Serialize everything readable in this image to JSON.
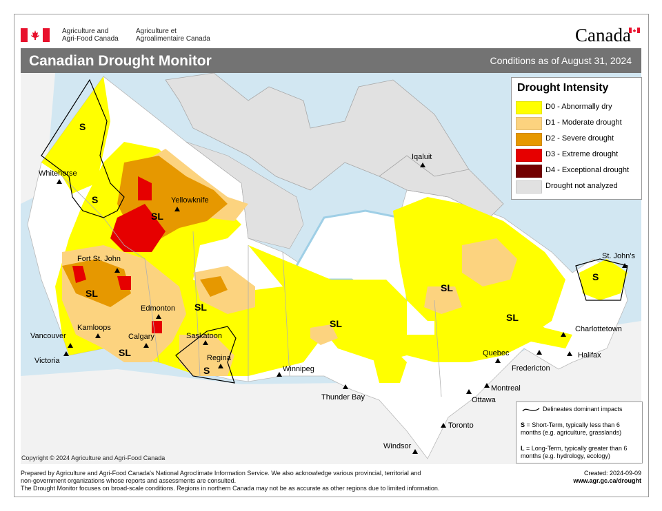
{
  "header": {
    "dept_en": [
      "Agriculture and",
      "Agri-Food Canada"
    ],
    "dept_fr": [
      "Agriculture et",
      "Agroalimentaire Canada"
    ],
    "wordmark": "Canada",
    "title": "Canadian Drought Monitor",
    "conditions": "Conditions as of August 31, 2024"
  },
  "legend": {
    "title": "Drought Intensity",
    "items": [
      {
        "label": "D0 - Abnormally dry",
        "color": "#ffff00"
      },
      {
        "label": "D1 - Moderate drought",
        "color": "#fcd37f"
      },
      {
        "label": "D2 - Severe drought",
        "color": "#e69800"
      },
      {
        "label": "D3 - Extreme drought",
        "color": "#e60000"
      },
      {
        "label": "D4 - Exceptional drought",
        "color": "#730000"
      },
      {
        "label": "Drought not analyzed",
        "color": "#e1e1e1"
      }
    ]
  },
  "impacts": {
    "line": "Delineates dominant impacts",
    "s_key": "S",
    "s_text": " = Short-Term, typically less than 6 months (e.g. agriculture, grasslands)",
    "l_key": "L",
    "l_text": " = Long-Term, typically greater  than 6 months (e.g. hydrology, ecology)"
  },
  "cities": [
    {
      "name": "Whitehorse"
    },
    {
      "name": "Yellowknife"
    },
    {
      "name": "Iqaluit"
    },
    {
      "name": "Fort St. John"
    },
    {
      "name": "Edmonton"
    },
    {
      "name": "Kamloops"
    },
    {
      "name": "Calgary"
    },
    {
      "name": "Saskatoon"
    },
    {
      "name": "Vancouver"
    },
    {
      "name": "Regina"
    },
    {
      "name": "Victoria"
    },
    {
      "name": "Winnipeg"
    },
    {
      "name": "Thunder Bay"
    },
    {
      "name": "Quebec"
    },
    {
      "name": "Montreal"
    },
    {
      "name": "Ottawa"
    },
    {
      "name": "Fredericton"
    },
    {
      "name": "Charlottetown"
    },
    {
      "name": "Halifax"
    },
    {
      "name": "St. John's"
    },
    {
      "name": "Toronto"
    },
    {
      "name": "Windsor"
    }
  ],
  "region_labels": {
    "s": "S",
    "sl": "SL"
  },
  "copyright": "Copyright © 2024 Agriculture and Agri-Food Canada",
  "footer": {
    "lines": [
      "Prepared by Agriculture and Agri-Food Canada's National Agroclimate Information Service.  We also acknowledge various provincial, territorial and",
      "non-government organizations whose reports and assessments are consulted.",
      "The Drought Monitor focuses on broad-scale conditions.  Regions in northern Canada may not be as accurate as other regions due to limited information."
    ],
    "created": "Created: 2024-09-09",
    "url": "www.agr.gc.ca/drought"
  }
}
